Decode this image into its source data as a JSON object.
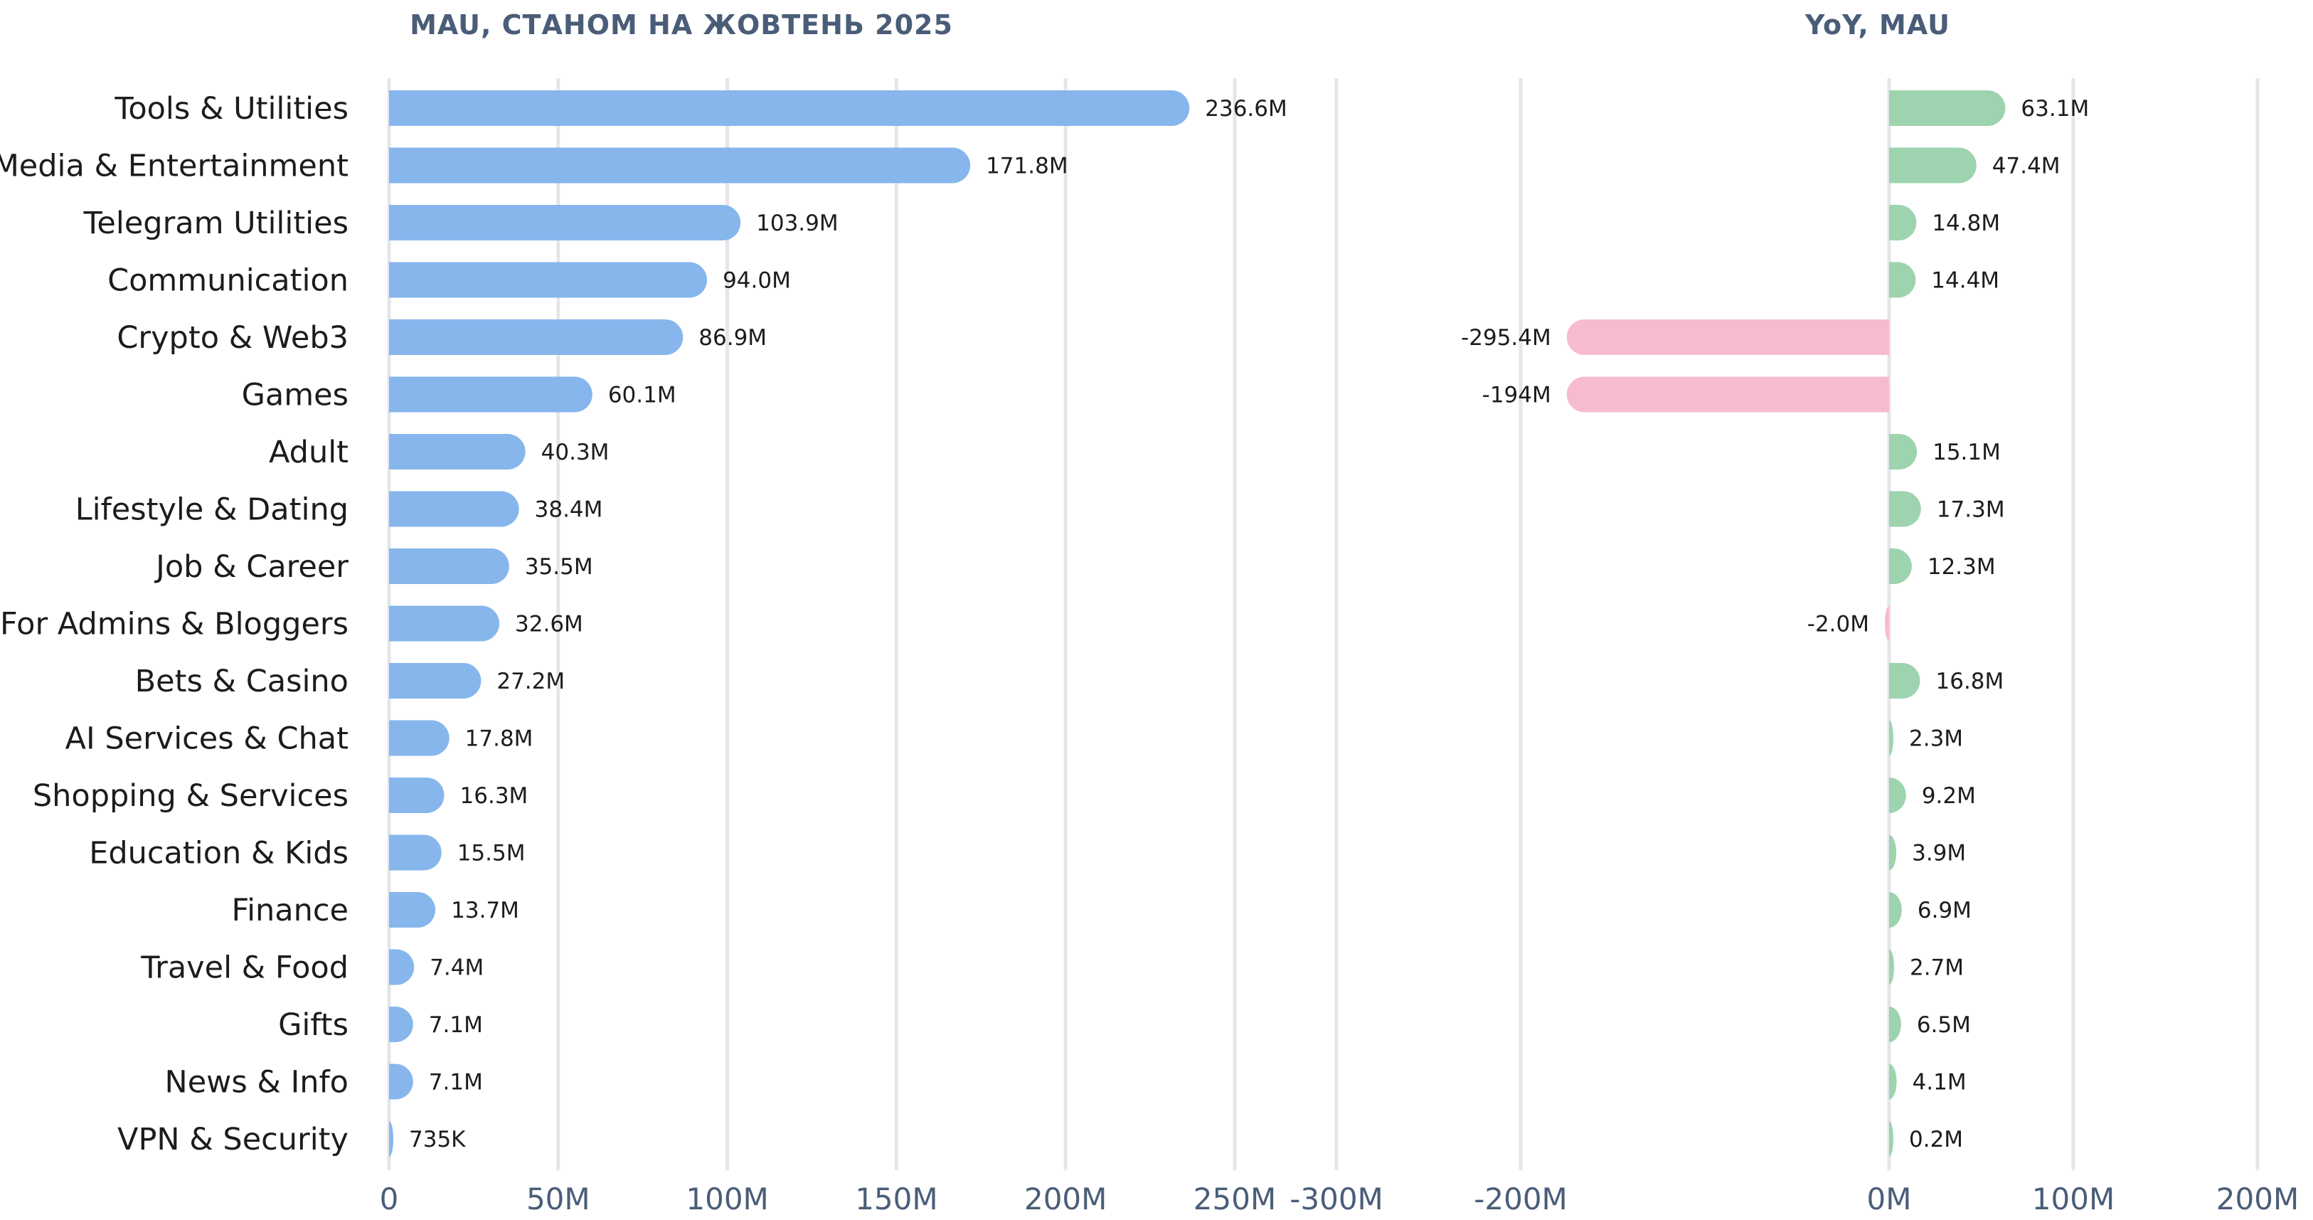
{
  "chart_data": [
    {
      "type": "bar",
      "orientation": "horizontal",
      "title": "MAU, СТАНОМ НА ЖОВТЕНЬ 2025",
      "categories": [
        "Tools & Utilities",
        "Media & Entertainment",
        "Telegram Utilities",
        "Communication",
        "Crypto & Web3",
        "Games",
        "Adult",
        "Lifestyle & Dating",
        "Job & Career",
        "For Admins & Bloggers",
        "Bets & Casino",
        "AI Services & Chat",
        "Shopping & Services",
        "Education & Kids",
        "Finance",
        "Travel & Food",
        "Gifts",
        "News & Info",
        "VPN & Security"
      ],
      "values": [
        236.6,
        171.8,
        103.9,
        94.0,
        86.9,
        60.1,
        40.3,
        38.4,
        35.5,
        32.6,
        27.2,
        17.8,
        16.3,
        15.5,
        13.7,
        7.4,
        7.1,
        7.1,
        0.735
      ],
      "value_labels": [
        "236.6M",
        "171.8M",
        "103.9M",
        "94.0M",
        "86.9M",
        "60.1M",
        "40.3M",
        "38.4M",
        "35.5M",
        "32.6M",
        "27.2M",
        "17.8M",
        "16.3M",
        "15.5M",
        "13.7M",
        "7.4M",
        "7.1M",
        "7.1M",
        "735K"
      ],
      "unit": "M",
      "xlim": [
        0,
        250
      ],
      "xticks": [
        0,
        50,
        100,
        150,
        200,
        250
      ],
      "xtick_labels": [
        "0",
        "50M",
        "100M",
        "150M",
        "200M",
        "250M"
      ],
      "grid": true,
      "color": "#86b6ec"
    },
    {
      "type": "bar",
      "orientation": "horizontal",
      "title": "YoY, MAU",
      "categories": [
        "Tools & Utilities",
        "Media & Entertainment",
        "Telegram Utilities",
        "Communication",
        "Crypto & Web3",
        "Games",
        "Adult",
        "Lifestyle & Dating",
        "Job & Career",
        "For Admins & Bloggers",
        "Bets & Casino",
        "AI Services & Chat",
        "Shopping & Services",
        "Education & Kids",
        "Finance",
        "Travel & Food",
        "Gifts",
        "News & Info",
        "VPN & Security"
      ],
      "values": [
        63.1,
        47.4,
        14.8,
        14.4,
        -295.4,
        -194,
        15.1,
        17.3,
        12.3,
        -2.0,
        16.8,
        2.3,
        9.2,
        3.9,
        6.9,
        2.7,
        6.5,
        4.1,
        0.2
      ],
      "value_labels": [
        "63.1M",
        "47.4M",
        "14.8M",
        "14.4M",
        "-295.4M",
        "-194M",
        "15.1M",
        "17.3M",
        "12.3M",
        "-2.0M",
        "16.8M",
        "2.3M",
        "9.2M",
        "3.9M",
        "6.9M",
        "2.7M",
        "6.5M",
        "4.1M",
        "0.2M"
      ],
      "unit": "M",
      "xlim": [
        -300,
        200
      ],
      "xticks": [
        -300,
        -200,
        0,
        100,
        200
      ],
      "xtick_labels": [
        "-300M",
        "-200M",
        "0M",
        "100M",
        "200M"
      ],
      "grid": true,
      "positive_color": "#9dd3ae",
      "negative_color": "#f6bccd"
    }
  ]
}
